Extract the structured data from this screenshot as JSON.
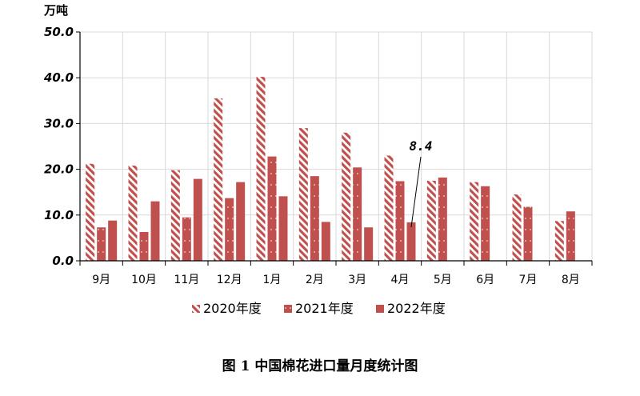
{
  "chart_data": {
    "type": "bar",
    "unit_label": "万吨",
    "categories": [
      "9月",
      "10月",
      "11月",
      "12月",
      "1月",
      "2月",
      "3月",
      "4月",
      "5月",
      "6月",
      "7月",
      "8月"
    ],
    "series": [
      {
        "name": "2020年度",
        "values": [
          21.2,
          20.8,
          19.8,
          35.5,
          40.2,
          29.0,
          28.0,
          23.0,
          17.5,
          17.2,
          14.5,
          8.7
        ],
        "pattern": "diagonal-stripes",
        "color": "#c0504d"
      },
      {
        "name": "2021年度",
        "values": [
          7.3,
          6.3,
          9.5,
          13.7,
          22.8,
          18.5,
          20.4,
          17.4,
          18.2,
          16.3,
          11.8,
          10.8
        ],
        "pattern": "dotted",
        "color": "#c0504d"
      },
      {
        "name": "2022年度",
        "values": [
          8.8,
          13.0,
          17.9,
          17.2,
          14.1,
          8.5,
          7.3,
          8.4,
          null,
          null,
          null,
          null
        ],
        "pattern": "solid",
        "color": "#c0504d"
      }
    ],
    "ylim": [
      0,
      50
    ],
    "yticks": [
      "0.0",
      "10.0",
      "20.0",
      "30.0",
      "40.0",
      "50.0"
    ],
    "grid": true,
    "legend_position": "bottom",
    "annotation": {
      "text": "8.4",
      "category": "4月",
      "series": "2022年度",
      "value": 8.4
    },
    "caption": "图 1 中国棉花进口量月度统计图"
  }
}
